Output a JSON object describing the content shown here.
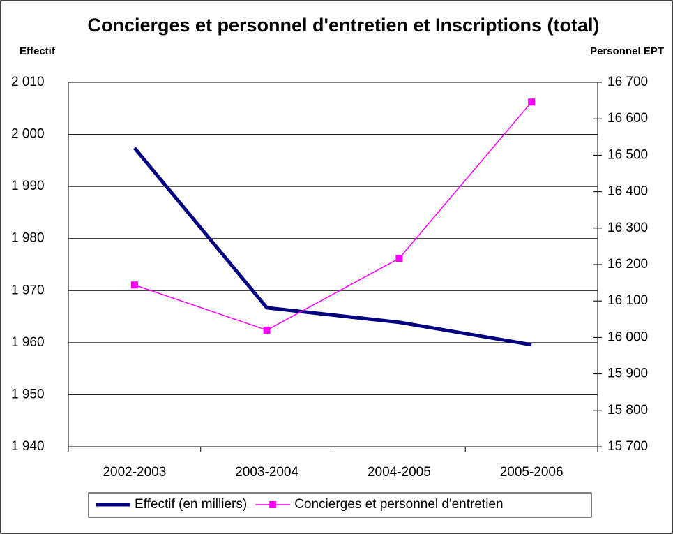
{
  "chart_data": {
    "type": "line",
    "title": "Concierges et personnel d'entretien et  Inscriptions (total)",
    "y_label": "Effectif",
    "y2_label": "Personnel EPT",
    "categories": [
      "2002-2003",
      "2003-2004",
      "2004-2005",
      "2005-2006"
    ],
    "series": [
      {
        "name": "Effectif (en milliers)",
        "color": "#000080",
        "axis": "y",
        "values": [
          1997.4,
          1966.7,
          1963.9,
          1959.6
        ]
      },
      {
        "name": "Concierges et personnel d'entretien",
        "color": "#ff00ff",
        "axis": "y2",
        "values": [
          16144,
          16020,
          16217,
          16646
        ]
      }
    ],
    "ylim": [
      1940,
      2010
    ],
    "yticks": [
      {
        "value": 1940,
        "label": "1 940"
      },
      {
        "value": 1950,
        "label": "1 950"
      },
      {
        "value": 1960,
        "label": "1 960"
      },
      {
        "value": 1970,
        "label": "1 970"
      },
      {
        "value": 1980,
        "label": "1 980"
      },
      {
        "value": 1990,
        "label": "1 990"
      },
      {
        "value": 2000,
        "label": "2 000"
      },
      {
        "value": 2010,
        "label": "2 010"
      }
    ],
    "y2lim": [
      15700,
      16700
    ],
    "y2ticks": [
      {
        "value": 15700,
        "label": "15 700"
      },
      {
        "value": 15800,
        "label": "15 800"
      },
      {
        "value": 15900,
        "label": "15 900"
      },
      {
        "value": 16000,
        "label": "16 000"
      },
      {
        "value": 16100,
        "label": "16 100"
      },
      {
        "value": 16200,
        "label": "16 200"
      },
      {
        "value": 16300,
        "label": "16 300"
      },
      {
        "value": 16400,
        "label": "16 400"
      },
      {
        "value": 16500,
        "label": "16 500"
      },
      {
        "value": 16600,
        "label": "16 600"
      },
      {
        "value": 16700,
        "label": "16 700"
      }
    ],
    "grid": true,
    "legend": "bottom"
  }
}
